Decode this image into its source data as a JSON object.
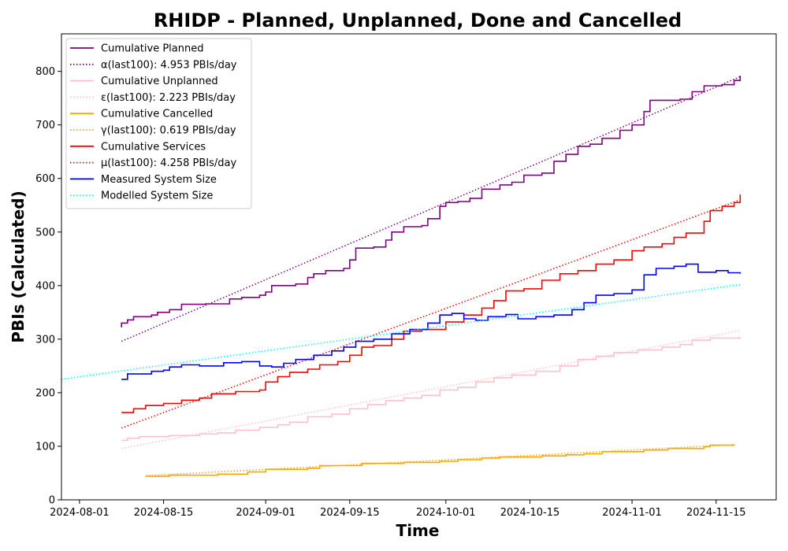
{
  "chart_data": {
    "type": "line",
    "title": "RHIDP - Planned, Unplanned, Done  and Cancelled",
    "xlabel": "Time",
    "ylabel": "PBIs (Calculated)",
    "xlim": [
      "2024-07-29",
      "2024-11-25"
    ],
    "ylim": [
      0,
      870
    ],
    "x_ticks": [
      "2024-08-01",
      "2024-08-15",
      "2024-09-01",
      "2024-09-15",
      "2024-10-01",
      "2024-10-15",
      "2024-11-01",
      "2024-11-15"
    ],
    "y_ticks": [
      0,
      100,
      200,
      300,
      400,
      500,
      600,
      700,
      800
    ],
    "grid": false,
    "legend_position": "upper-left",
    "series": [
      {
        "name": "Cumulative Planned",
        "color": "#800080",
        "style": "solid",
        "points": [
          [
            "2024-08-08",
            322
          ],
          [
            "2024-08-08",
            330
          ],
          [
            "2024-08-09",
            336
          ],
          [
            "2024-08-10",
            342
          ],
          [
            "2024-08-13",
            345
          ],
          [
            "2024-08-14",
            350
          ],
          [
            "2024-08-16",
            355
          ],
          [
            "2024-08-18",
            365
          ],
          [
            "2024-08-22",
            366
          ],
          [
            "2024-08-26",
            375
          ],
          [
            "2024-08-28",
            378
          ],
          [
            "2024-08-31",
            382
          ],
          [
            "2024-09-01",
            388
          ],
          [
            "2024-09-02",
            400
          ],
          [
            "2024-09-06",
            403
          ],
          [
            "2024-09-08",
            415
          ],
          [
            "2024-09-09",
            422
          ],
          [
            "2024-09-11",
            428
          ],
          [
            "2024-09-14",
            432
          ],
          [
            "2024-09-15",
            448
          ],
          [
            "2024-09-16",
            470
          ],
          [
            "2024-09-19",
            472
          ],
          [
            "2024-09-21",
            485
          ],
          [
            "2024-09-22",
            500
          ],
          [
            "2024-09-24",
            510
          ],
          [
            "2024-09-27",
            512
          ],
          [
            "2024-09-28",
            525
          ],
          [
            "2024-09-30",
            548
          ],
          [
            "2024-10-01",
            555
          ],
          [
            "2024-10-03",
            557
          ],
          [
            "2024-10-05",
            563
          ],
          [
            "2024-10-07",
            580
          ],
          [
            "2024-10-10",
            588
          ],
          [
            "2024-10-12",
            593
          ],
          [
            "2024-10-14",
            606
          ],
          [
            "2024-10-17",
            610
          ],
          [
            "2024-10-19",
            632
          ],
          [
            "2024-10-21",
            645
          ],
          [
            "2024-10-23",
            660
          ],
          [
            "2024-10-25",
            664
          ],
          [
            "2024-10-27",
            675
          ],
          [
            "2024-10-30",
            690
          ],
          [
            "2024-11-01",
            700
          ],
          [
            "2024-11-03",
            725
          ],
          [
            "2024-11-04",
            746
          ],
          [
            "2024-11-09",
            748
          ],
          [
            "2024-11-11",
            762
          ],
          [
            "2024-11-13",
            773
          ],
          [
            "2024-11-16",
            775
          ],
          [
            "2024-11-18",
            783
          ],
          [
            "2024-11-19",
            792
          ]
        ]
      },
      {
        "name": "α(last100): 4.953 PBIs/day",
        "color": "#800080",
        "style": "dotted",
        "points": [
          [
            "2024-08-08",
            296
          ],
          [
            "2024-11-19",
            790
          ]
        ]
      },
      {
        "name": "Cumulative Unplanned",
        "color": "#ffc0cb",
        "style": "solid",
        "points": [
          [
            "2024-08-08",
            111
          ],
          [
            "2024-08-09",
            115
          ],
          [
            "2024-08-11",
            118
          ],
          [
            "2024-08-16",
            120
          ],
          [
            "2024-08-21",
            123
          ],
          [
            "2024-08-24",
            125
          ],
          [
            "2024-08-27",
            130
          ],
          [
            "2024-08-31",
            135
          ],
          [
            "2024-09-03",
            140
          ],
          [
            "2024-09-05",
            145
          ],
          [
            "2024-09-08",
            155
          ],
          [
            "2024-09-12",
            160
          ],
          [
            "2024-09-15",
            170
          ],
          [
            "2024-09-18",
            178
          ],
          [
            "2024-09-21",
            185
          ],
          [
            "2024-09-24",
            190
          ],
          [
            "2024-09-27",
            195
          ],
          [
            "2024-09-30",
            205
          ],
          [
            "2024-10-03",
            210
          ],
          [
            "2024-10-06",
            220
          ],
          [
            "2024-10-09",
            228
          ],
          [
            "2024-10-12",
            233
          ],
          [
            "2024-10-16",
            240
          ],
          [
            "2024-10-20",
            250
          ],
          [
            "2024-10-23",
            262
          ],
          [
            "2024-10-26",
            268
          ],
          [
            "2024-10-29",
            275
          ],
          [
            "2024-11-02",
            280
          ],
          [
            "2024-11-06",
            285
          ],
          [
            "2024-11-09",
            290
          ],
          [
            "2024-11-11",
            298
          ],
          [
            "2024-11-14",
            302
          ],
          [
            "2024-11-19",
            304
          ]
        ]
      },
      {
        "name": "ε(last100): 2.223 PBIs/day",
        "color": "#ffc0cb",
        "style": "dotted",
        "points": [
          [
            "2024-08-08",
            96
          ],
          [
            "2024-11-19",
            316
          ]
        ]
      },
      {
        "name": "Cumulative Cancelled",
        "color": "#ffa500",
        "style": "solid",
        "points": [
          [
            "2024-08-12",
            44
          ],
          [
            "2024-08-16",
            46
          ],
          [
            "2024-08-24",
            48
          ],
          [
            "2024-08-29",
            52
          ],
          [
            "2024-09-01",
            57
          ],
          [
            "2024-09-08",
            59
          ],
          [
            "2024-09-10",
            64
          ],
          [
            "2024-09-17",
            68
          ],
          [
            "2024-09-24",
            70
          ],
          [
            "2024-09-30",
            72
          ],
          [
            "2024-10-03",
            75
          ],
          [
            "2024-10-07",
            78
          ],
          [
            "2024-10-10",
            80
          ],
          [
            "2024-10-17",
            82
          ],
          [
            "2024-10-21",
            84
          ],
          [
            "2024-10-24",
            86
          ],
          [
            "2024-10-27",
            90
          ],
          [
            "2024-11-03",
            93
          ],
          [
            "2024-11-07",
            96
          ],
          [
            "2024-11-13",
            99
          ],
          [
            "2024-11-14",
            102
          ],
          [
            "2024-11-18",
            104
          ]
        ]
      },
      {
        "name": "γ(last100): 0.619 PBIs/day",
        "color": "#ffa500",
        "style": "dotted",
        "points": [
          [
            "2024-08-12",
            45
          ],
          [
            "2024-11-18",
            103
          ]
        ]
      },
      {
        "name": "Cumulative Services",
        "color": "#ff0000",
        "style": "solid",
        "points": [
          [
            "2024-08-08",
            163
          ],
          [
            "2024-08-10",
            170
          ],
          [
            "2024-08-12",
            176
          ],
          [
            "2024-08-15",
            180
          ],
          [
            "2024-08-18",
            186
          ],
          [
            "2024-08-21",
            190
          ],
          [
            "2024-08-23",
            198
          ],
          [
            "2024-08-27",
            202
          ],
          [
            "2024-08-31",
            205
          ],
          [
            "2024-09-01",
            220
          ],
          [
            "2024-09-03",
            230
          ],
          [
            "2024-09-05",
            238
          ],
          [
            "2024-09-08",
            244
          ],
          [
            "2024-09-10",
            252
          ],
          [
            "2024-09-13",
            258
          ],
          [
            "2024-09-15",
            270
          ],
          [
            "2024-09-17",
            285
          ],
          [
            "2024-09-19",
            288
          ],
          [
            "2024-09-22",
            300
          ],
          [
            "2024-09-24",
            315
          ],
          [
            "2024-09-27",
            318
          ],
          [
            "2024-10-01",
            332
          ],
          [
            "2024-10-04",
            345
          ],
          [
            "2024-10-07",
            358
          ],
          [
            "2024-10-09",
            372
          ],
          [
            "2024-10-11",
            390
          ],
          [
            "2024-10-14",
            394
          ],
          [
            "2024-10-17",
            410
          ],
          [
            "2024-10-20",
            422
          ],
          [
            "2024-10-23",
            428
          ],
          [
            "2024-10-26",
            440
          ],
          [
            "2024-10-29",
            448
          ],
          [
            "2024-11-01",
            465
          ],
          [
            "2024-11-03",
            472
          ],
          [
            "2024-11-06",
            478
          ],
          [
            "2024-11-08",
            490
          ],
          [
            "2024-11-10",
            498
          ],
          [
            "2024-11-13",
            520
          ],
          [
            "2024-11-14",
            540
          ],
          [
            "2024-11-16",
            548
          ],
          [
            "2024-11-18",
            555
          ],
          [
            "2024-11-19",
            570
          ]
        ]
      },
      {
        "name": "μ(last100): 4.258 PBIs/day",
        "color": "#ff0000",
        "style": "dotted",
        "points": [
          [
            "2024-08-08",
            134
          ],
          [
            "2024-11-19",
            560
          ]
        ]
      },
      {
        "name": "Measured System Size",
        "color": "#0000ff",
        "style": "solid",
        "points": [
          [
            "2024-08-08",
            225
          ],
          [
            "2024-08-09",
            235
          ],
          [
            "2024-08-13",
            240
          ],
          [
            "2024-08-15",
            242
          ],
          [
            "2024-08-16",
            248
          ],
          [
            "2024-08-18",
            252
          ],
          [
            "2024-08-21",
            250
          ],
          [
            "2024-08-25",
            256
          ],
          [
            "2024-08-28",
            258
          ],
          [
            "2024-08-31",
            250
          ],
          [
            "2024-09-02",
            248
          ],
          [
            "2024-09-04",
            255
          ],
          [
            "2024-09-06",
            262
          ],
          [
            "2024-09-09",
            270
          ],
          [
            "2024-09-12",
            278
          ],
          [
            "2024-09-14",
            285
          ],
          [
            "2024-09-16",
            296
          ],
          [
            "2024-09-19",
            300
          ],
          [
            "2024-09-22",
            310
          ],
          [
            "2024-09-25",
            318
          ],
          [
            "2024-09-28",
            330
          ],
          [
            "2024-09-30",
            345
          ],
          [
            "2024-10-02",
            348
          ],
          [
            "2024-10-04",
            338
          ],
          [
            "2024-10-06",
            335
          ],
          [
            "2024-10-08",
            342
          ],
          [
            "2024-10-11",
            346
          ],
          [
            "2024-10-13",
            338
          ],
          [
            "2024-10-16",
            342
          ],
          [
            "2024-10-19",
            345
          ],
          [
            "2024-10-22",
            355
          ],
          [
            "2024-10-24",
            368
          ],
          [
            "2024-10-26",
            382
          ],
          [
            "2024-10-29",
            385
          ],
          [
            "2024-11-01",
            392
          ],
          [
            "2024-11-03",
            420
          ],
          [
            "2024-11-05",
            432
          ],
          [
            "2024-11-08",
            436
          ],
          [
            "2024-11-10",
            440
          ],
          [
            "2024-11-12",
            425
          ],
          [
            "2024-11-15",
            428
          ],
          [
            "2024-11-17",
            424
          ],
          [
            "2024-11-19",
            422
          ]
        ]
      },
      {
        "name": "Modelled System Size",
        "color": "#00ffff",
        "style": "dotted",
        "points": [
          [
            "2024-07-29",
            225
          ],
          [
            "2024-11-19",
            402
          ]
        ]
      }
    ]
  }
}
